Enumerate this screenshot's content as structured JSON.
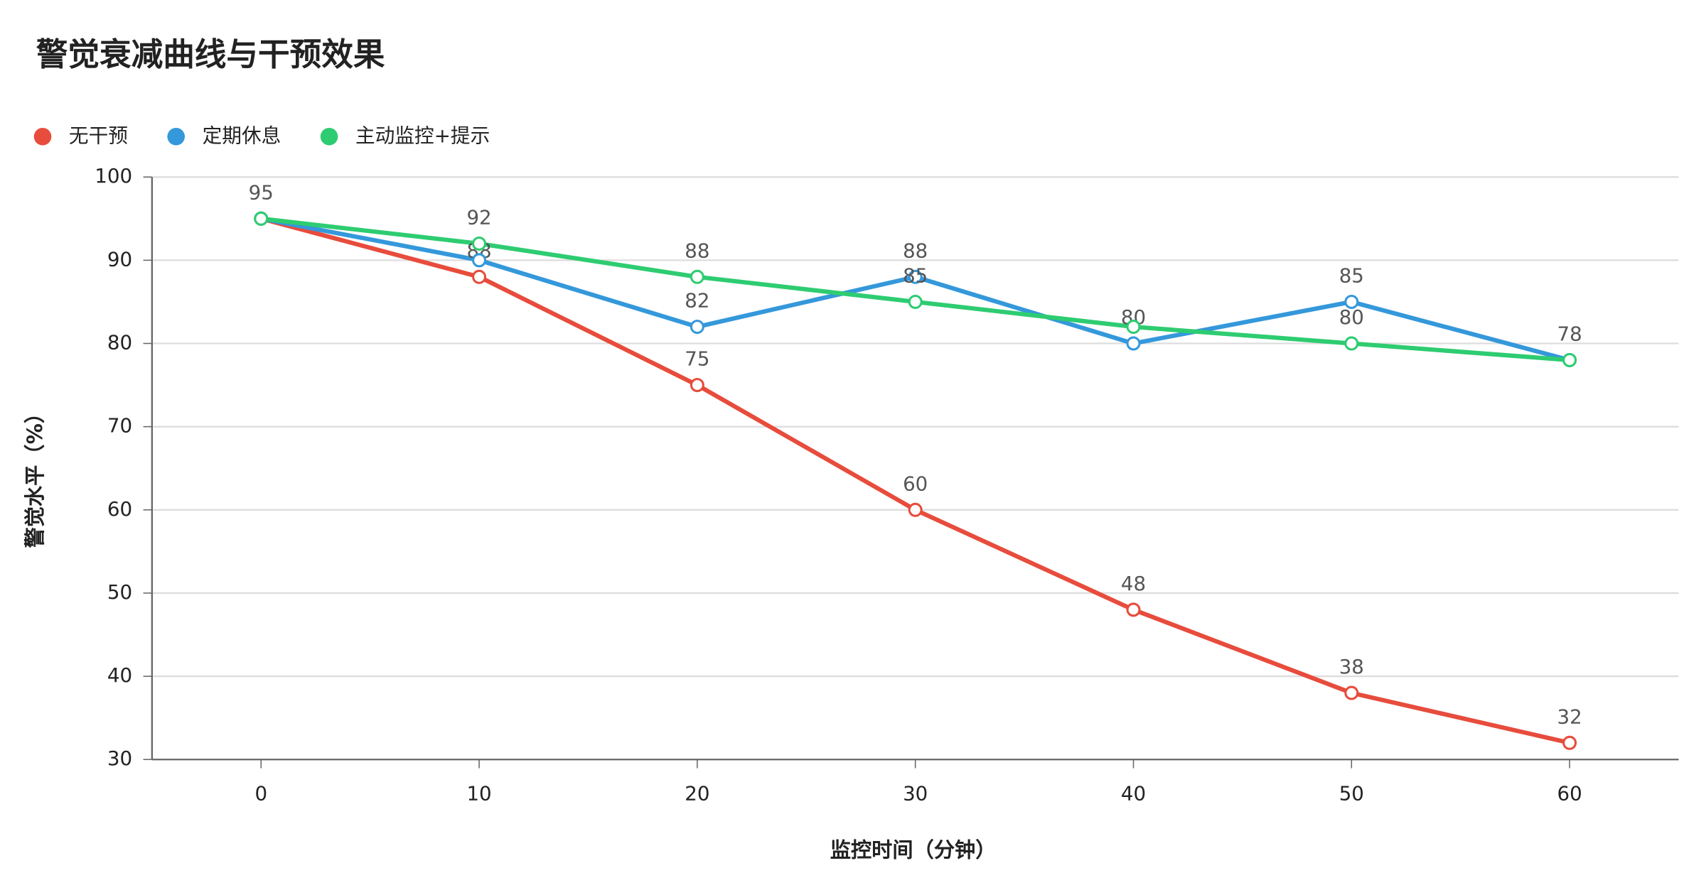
{
  "chart_data": {
    "type": "line",
    "title": "警觉衰减曲线与干预效果",
    "x_label": "监控时间（分钟）",
    "y_label": "警觉水平（%）",
    "x": [
      0,
      10,
      20,
      30,
      40,
      50,
      60
    ],
    "xlim": [
      -5,
      65
    ],
    "xticks": [
      0,
      10,
      20,
      30,
      40,
      50,
      60
    ],
    "ylim": [
      30,
      100
    ],
    "yticks": [
      30,
      40,
      50,
      60,
      70,
      80,
      90,
      100
    ],
    "grid": true,
    "legend": "top-left",
    "series": [
      {
        "name": "无干预",
        "color": "#e74c3c",
        "values": [
          95,
          88,
          75,
          60,
          48,
          38,
          32
        ]
      },
      {
        "name": "定期休息",
        "color": "#3498db",
        "values": [
          95,
          90,
          82,
          88,
          80,
          85,
          78
        ]
      },
      {
        "name": "主动监控+提示",
        "color": "#2ecc71",
        "values": [
          95,
          92,
          88,
          85,
          82,
          80,
          78
        ]
      }
    ]
  }
}
